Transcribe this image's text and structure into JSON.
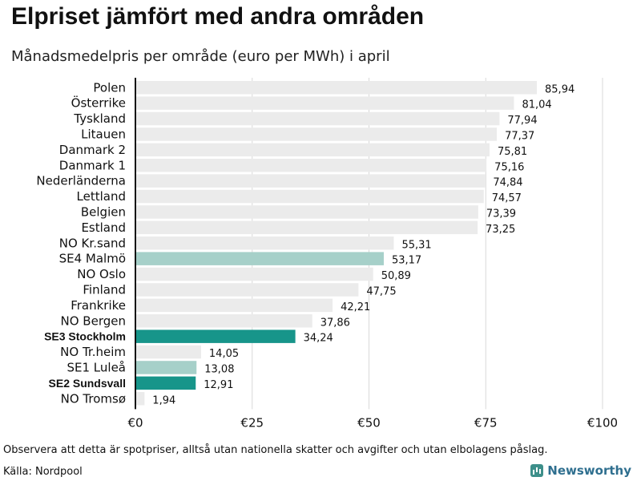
{
  "chart_data": {
    "type": "bar",
    "orientation": "horizontal",
    "title": "Elpriset jämfört med andra områden",
    "subtitle": "Månadsmedelpris per område (euro per MWh) i april",
    "categories": [
      "Polen",
      "Österrike",
      "Tyskland",
      "Litauen",
      "Danmark 2",
      "Danmark 1",
      "Nederländerna",
      "Lettland",
      "Belgien",
      "Estland",
      "NO Kr.sand",
      "SE4 Malmö",
      "NO Oslo",
      "Finland",
      "Frankrike",
      "NO Bergen",
      "SE3 Stockholm",
      "NO Tr.heim",
      "SE1 Luleå",
      "SE2 Sundsvall",
      "NO Tromsø"
    ],
    "values": [
      85.94,
      81.04,
      77.94,
      77.37,
      75.81,
      75.16,
      74.84,
      74.57,
      73.39,
      73.25,
      55.31,
      53.17,
      50.89,
      47.75,
      42.21,
      37.86,
      34.24,
      14.05,
      13.08,
      12.91,
      1.94
    ],
    "value_labels": [
      "85,94",
      "81,04",
      "77,94",
      "77,37",
      "75,81",
      "75,16",
      "74,84",
      "74,57",
      "73,39",
      "73,25",
      "55,31",
      "53,17",
      "50,89",
      "47,75",
      "42,21",
      "37,86",
      "34,24",
      "14,05",
      "13,08",
      "12,91",
      "1,94"
    ],
    "highlight": [
      "none",
      "none",
      "none",
      "none",
      "none",
      "none",
      "none",
      "none",
      "none",
      "none",
      "none",
      "light",
      "none",
      "none",
      "none",
      "none",
      "dark",
      "none",
      "light",
      "dark",
      "none"
    ],
    "bold_labels": [
      false,
      false,
      false,
      false,
      false,
      false,
      false,
      false,
      false,
      false,
      false,
      false,
      false,
      false,
      false,
      false,
      true,
      false,
      false,
      true,
      false
    ],
    "xlim": [
      0,
      100
    ],
    "xticks": [
      0,
      25,
      50,
      75,
      100
    ],
    "xtick_labels": [
      "€0",
      "€25",
      "€50",
      "€75",
      "€100"
    ],
    "grid": true,
    "xlabel": "",
    "ylabel": ""
  },
  "colors": {
    "default_bar": "#ebebeb",
    "light_highlight": "#a6d0c9",
    "dark_highlight": "#17958a",
    "grid": "#d8d8d8",
    "axis": "#111111",
    "brand": "#2f6f8f"
  },
  "footer": {
    "note": "Observera att detta är spotpriser, alltså utan nationella skatter och avgifter och utan elbolagens påslag.",
    "source": "Källa: Nordpool",
    "brand": "Newsworthy",
    "brand_icon": "bar-chart-logo-icon"
  }
}
